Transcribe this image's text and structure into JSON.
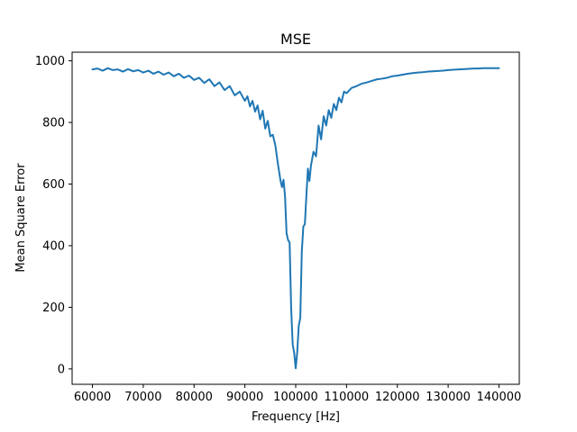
{
  "chart_data": {
    "type": "line",
    "title": "MSE",
    "xlabel": "Frequency [Hz]",
    "ylabel": "Mean Square Error",
    "xlim": [
      56000,
      144000
    ],
    "ylim": [
      -50,
      1028
    ],
    "xticks": [
      60000,
      70000,
      80000,
      90000,
      100000,
      110000,
      120000,
      130000,
      140000
    ],
    "yticks": [
      0,
      200,
      400,
      600,
      800,
      1000
    ],
    "grid": false,
    "line_color": "#1f77b4",
    "series": [
      {
        "x": [
          60000,
          61000,
          62000,
          63000,
          64000,
          65000,
          66000,
          67000,
          68000,
          69000,
          70000,
          71000,
          72000,
          73000,
          74000,
          75000,
          76000,
          77000,
          78000,
          79000,
          80000,
          81000,
          82000,
          83000,
          84000,
          85000,
          86000,
          87000,
          88000,
          89000,
          90000,
          90500,
          91000,
          91500,
          92000,
          92500,
          93000,
          93500,
          94000,
          94500,
          95000,
          95500,
          96000,
          96500,
          97000,
          97300,
          97600,
          97900,
          98200,
          98500,
          98800,
          99100,
          99400,
          99700,
          100000,
          100300,
          100600,
          100900,
          101200,
          101500,
          101800,
          102100,
          102400,
          102700,
          103000,
          103500,
          104000,
          104500,
          105000,
          105500,
          106000,
          106500,
          107000,
          107500,
          108000,
          108500,
          109000,
          109500,
          110000,
          111000,
          112000,
          113000,
          114000,
          115000,
          116000,
          117000,
          118000,
          119000,
          120000,
          121000,
          122000,
          123000,
          124000,
          125000,
          126000,
          127000,
          128000,
          129000,
          130000,
          131000,
          132000,
          133000,
          134000,
          135000,
          136000,
          137000,
          138000,
          139000,
          140000
        ],
        "y": [
          972,
          975,
          968,
          976,
          970,
          972,
          965,
          973,
          966,
          970,
          962,
          968,
          958,
          965,
          955,
          962,
          950,
          958,
          945,
          952,
          938,
          945,
          928,
          940,
          918,
          930,
          905,
          918,
          888,
          900,
          870,
          885,
          852,
          870,
          835,
          855,
          810,
          838,
          780,
          805,
          755,
          760,
          725,
          665,
          612,
          590,
          614,
          560,
          440,
          418,
          410,
          200,
          80,
          52,
          2,
          55,
          140,
          165,
          380,
          462,
          470,
          562,
          650,
          610,
          660,
          705,
          690,
          790,
          745,
          820,
          790,
          840,
          815,
          860,
          840,
          880,
          865,
          900,
          895,
          912,
          918,
          926,
          930,
          935,
          940,
          942,
          945,
          950,
          952,
          955,
          958,
          960,
          962,
          963,
          965,
          966,
          967,
          968,
          970,
          971,
          972,
          973,
          974,
          975,
          975,
          976,
          976,
          976,
          976
        ]
      }
    ]
  }
}
